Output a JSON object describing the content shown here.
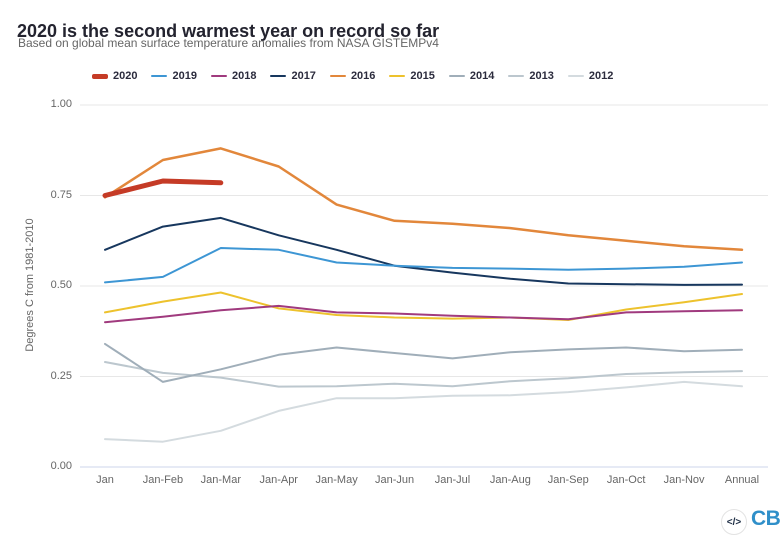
{
  "header": {
    "title": "2020 is the second warmest year on record so far",
    "subtitle": "Based on global mean surface temperature anomalies from NASA GISTEMPv4"
  },
  "chart_data": {
    "type": "line",
    "title": "2020 is the second warmest year on record so far",
    "subtitle": "Based on global mean surface temperature anomalies from NASA GISTEMPv4",
    "categories": [
      "Jan",
      "Jan-Feb",
      "Jan-Mar",
      "Jan-Apr",
      "Jan-May",
      "Jan-Jun",
      "Jan-Jul",
      "Jan-Aug",
      "Jan-Sep",
      "Jan-Oct",
      "Jan-Nov",
      "Annual"
    ],
    "xlabel": "",
    "ylabel": "Degrees C from 1981-2010",
    "ylim": [
      0,
      1.0
    ],
    "ytick_labels": [
      "0.00",
      "0.25",
      "0.50",
      "0.75",
      "1.00"
    ],
    "grid": true,
    "legend_position": "top",
    "series": [
      {
        "name": "2020",
        "color": "#c53b26",
        "line_width": 5,
        "values": [
          0.75,
          0.79,
          0.785
        ]
      },
      {
        "name": "2019",
        "color": "#3d96d4",
        "line_width": 2,
        "values": [
          0.51,
          0.525,
          0.605,
          0.6,
          0.565,
          0.556,
          0.55,
          0.548,
          0.545,
          0.548,
          0.553,
          0.565
        ]
      },
      {
        "name": "2018",
        "color": "#a03a7e",
        "line_width": 2,
        "values": [
          0.4,
          0.415,
          0.433,
          0.445,
          0.427,
          0.424,
          0.418,
          0.413,
          0.408,
          0.427,
          0.43,
          0.433
        ]
      },
      {
        "name": "2017",
        "color": "#17375e",
        "line_width": 2,
        "values": [
          0.6,
          0.664,
          0.688,
          0.64,
          0.6,
          0.556,
          0.537,
          0.52,
          0.507,
          0.505,
          0.503,
          0.504
        ]
      },
      {
        "name": "2016",
        "color": "#e2873b",
        "line_width": 2.5,
        "values": [
          0.745,
          0.848,
          0.88,
          0.83,
          0.725,
          0.68,
          0.672,
          0.66,
          0.64,
          0.625,
          0.61,
          0.6
        ]
      },
      {
        "name": "2015",
        "color": "#edc22d",
        "line_width": 2,
        "values": [
          0.427,
          0.457,
          0.482,
          0.438,
          0.42,
          0.413,
          0.41,
          0.413,
          0.406,
          0.435,
          0.455,
          0.478
        ]
      },
      {
        "name": "2014",
        "color": "#a0aeb9",
        "line_width": 2,
        "values": [
          0.34,
          0.235,
          0.27,
          0.31,
          0.33,
          0.315,
          0.3,
          0.317,
          0.325,
          0.33,
          0.32,
          0.324
        ]
      },
      {
        "name": "2013",
        "color": "#bcc7ce",
        "line_width": 2,
        "values": [
          0.29,
          0.26,
          0.247,
          0.222,
          0.223,
          0.23,
          0.223,
          0.237,
          0.245,
          0.257,
          0.262,
          0.265
        ]
      },
      {
        "name": "2012",
        "color": "#d4dbdf",
        "line_width": 2,
        "values": [
          0.077,
          0.07,
          0.1,
          0.155,
          0.19,
          0.19,
          0.197,
          0.198,
          0.207,
          0.22,
          0.235,
          0.223
        ]
      }
    ],
    "colors": {
      "grid": "#e7e7e7",
      "zero_axis": "#ccd6eb",
      "axis_text": "#666666",
      "legend_text": "#2b2b3d",
      "title_text": "#23232f"
    }
  },
  "footer": {
    "embed_icon_label": "</>",
    "logo_text": "CB"
  }
}
